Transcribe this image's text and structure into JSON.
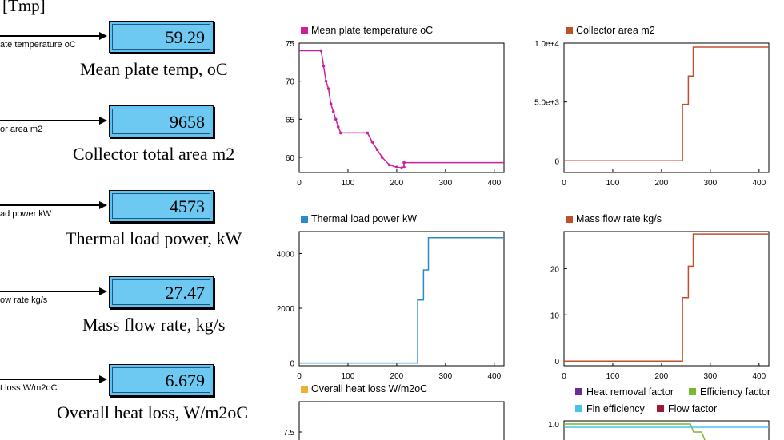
{
  "goto_tag": "[Tmp]",
  "blocks": [
    {
      "signal": "ate temperature oC",
      "value": "59.29",
      "caption": "Mean plate temp, oC"
    },
    {
      "signal": "or area m2",
      "value": "9658",
      "caption": "Collector total area m2"
    },
    {
      "signal": "ad power kW",
      "value": "4573",
      "caption": "Thermal load power, kW"
    },
    {
      "signal": "ow rate kg/s",
      "value": "27.47",
      "caption": "Mass flow rate, kg/s"
    },
    {
      "signal": "t loss W/m2oC",
      "value": "6.679",
      "caption": "Overall heat loss, W/m2oC"
    }
  ],
  "colors": {
    "display_fill": "#6dc8f2",
    "magenta": "#cc1f9e",
    "red_orange": "#c0502a",
    "blue": "#2a8bc8",
    "gold": "#e8b430",
    "purple": "#6b2d8f",
    "green": "#7ab82e",
    "cyan": "#48c4e8",
    "maroon": "#9b1a3a"
  },
  "chart_data": [
    {
      "type": "line",
      "title": "Mean plate temperature oC",
      "xlim": [
        0,
        420
      ],
      "ylim": [
        58,
        75
      ],
      "xticks": [
        "0",
        "100",
        "200",
        "300",
        "400"
      ],
      "yticks": [
        "60",
        "65",
        "70",
        "75"
      ],
      "ytick_values": [
        60,
        65,
        70,
        75
      ],
      "legend_color": "#cc1f9e",
      "series": [
        {
          "values": [
            [
              0,
              74
            ],
            [
              45,
              74
            ],
            [
              50,
              72
            ],
            [
              55,
              70
            ],
            [
              60,
              69
            ],
            [
              65,
              67
            ],
            [
              70,
              66
            ],
            [
              75,
              65
            ],
            [
              80,
              64
            ],
            [
              85,
              63.2
            ],
            [
              140,
              63.2
            ],
            [
              150,
              62
            ],
            [
              160,
              61
            ],
            [
              170,
              60
            ],
            [
              185,
              59
            ],
            [
              200,
              58.7
            ],
            [
              210,
              58.6
            ],
            [
              215,
              58.7
            ],
            [
              215,
              59.3
            ],
            [
              420,
              59.3
            ]
          ]
        }
      ]
    },
    {
      "type": "line",
      "title": "Collector area m2",
      "xlim": [
        0,
        420
      ],
      "ylim": [
        -1000,
        10000
      ],
      "xticks": [
        "0",
        "100",
        "200",
        "300",
        "400"
      ],
      "yticks": [
        "0",
        "5.0e+3",
        "1.0e+4"
      ],
      "ytick_values": [
        0,
        5000,
        10000
      ],
      "legend_color": "#c0502a",
      "series": [
        {
          "values": [
            [
              0,
              0
            ],
            [
              243,
              0
            ],
            [
              243,
              4800
            ],
            [
              255,
              4800
            ],
            [
              255,
              7200
            ],
            [
              265,
              7200
            ],
            [
              265,
              9658
            ],
            [
              420,
              9658
            ]
          ]
        }
      ]
    },
    {
      "type": "line",
      "title": "Thermal load power kW",
      "xlim": [
        0,
        420
      ],
      "ylim": [
        -100,
        4800
      ],
      "xticks": [
        "0",
        "100",
        "200",
        "300",
        "400"
      ],
      "yticks": [
        "0",
        "2000",
        "4000"
      ],
      "ytick_values": [
        0,
        2000,
        4000
      ],
      "legend_color": "#2a8bc8",
      "series": [
        {
          "values": [
            [
              0,
              0
            ],
            [
              243,
              0
            ],
            [
              243,
              2300
            ],
            [
              255,
              2300
            ],
            [
              255,
              3400
            ],
            [
              265,
              3400
            ],
            [
              265,
              4573
            ],
            [
              420,
              4573
            ]
          ]
        }
      ]
    },
    {
      "type": "line",
      "title": "Mass flow rate kg/s",
      "xlim": [
        0,
        420
      ],
      "ylim": [
        -1,
        28
      ],
      "xticks": [
        "0",
        "100",
        "200",
        "300",
        "400"
      ],
      "yticks": [
        "0",
        "10",
        "20"
      ],
      "ytick_values": [
        0,
        10,
        20
      ],
      "legend_color": "#c0502a",
      "series": [
        {
          "values": [
            [
              0,
              0
            ],
            [
              243,
              0
            ],
            [
              243,
              13.7
            ],
            [
              255,
              13.7
            ],
            [
              255,
              20.5
            ],
            [
              265,
              20.5
            ],
            [
              265,
              27.47
            ],
            [
              420,
              27.47
            ]
          ]
        }
      ]
    },
    {
      "type": "line",
      "title": "Overall heat loss W/m2oC",
      "yticks": [
        "7.5"
      ],
      "legend_color": "#e8b430"
    },
    {
      "type": "line",
      "legend": [
        {
          "name": "Heat removal factor",
          "color": "#6b2d8f"
        },
        {
          "name": "Efficiency factor",
          "color": "#7ab82e"
        },
        {
          "name": "Fin efficiency",
          "color": "#48c4e8"
        },
        {
          "name": "Flow factor",
          "color": "#9b1a3a"
        }
      ],
      "yticks": [
        "1.0"
      ]
    }
  ]
}
